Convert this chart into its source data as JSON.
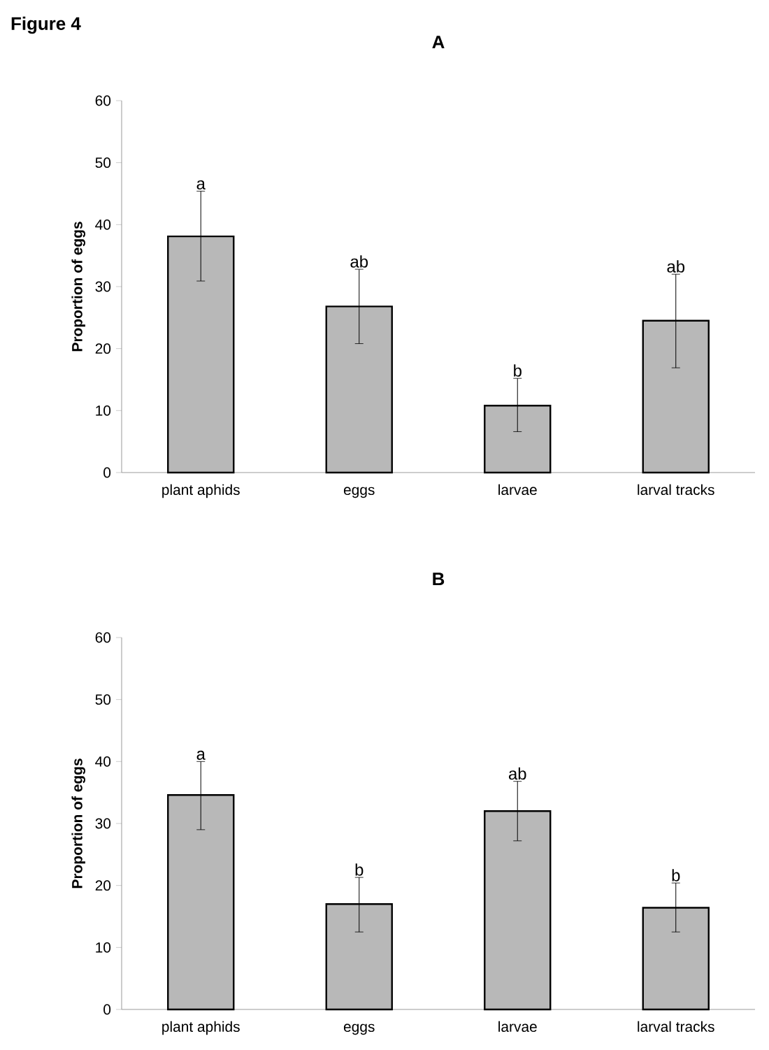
{
  "chart_data": [
    {
      "type": "bar",
      "title": "A",
      "ylabel": "Proportion of eggs",
      "categories": [
        "plant aphids",
        "eggs",
        "larvae",
        "larval tracks"
      ],
      "values": [
        38.1,
        26.8,
        10.8,
        24.5
      ],
      "errors": [
        [
          30.9,
          45.4
        ],
        [
          20.8,
          32.8
        ],
        [
          6.6,
          15.2
        ],
        [
          16.9,
          32.0
        ]
      ],
      "color": "#b8b8b8",
      "ylim": [
        0,
        60
      ],
      "yticks": [
        0,
        10,
        20,
        30,
        40,
        50,
        60
      ],
      "annotations": [
        "a",
        "ab",
        "b",
        "ab",
        "Figure 4"
      ]
    },
    {
      "type": "bar",
      "title": "B",
      "ylabel": "Proportion of eggs",
      "categories": [
        "plant aphids",
        "eggs",
        "larvae",
        "larval tracks"
      ],
      "values": [
        34.6,
        17.0,
        32.0,
        16.4
      ],
      "errors": [
        [
          29.0,
          40.0
        ],
        [
          12.5,
          21.3
        ],
        [
          27.2,
          36.8
        ],
        [
          12.5,
          20.4
        ]
      ],
      "color": "#b8b8b8",
      "ylim": [
        0,
        60
      ],
      "yticks": [
        0,
        10,
        20,
        30,
        40,
        50,
        60
      ],
      "annotations": [
        "a",
        "b",
        "ab",
        "b"
      ]
    }
  ]
}
